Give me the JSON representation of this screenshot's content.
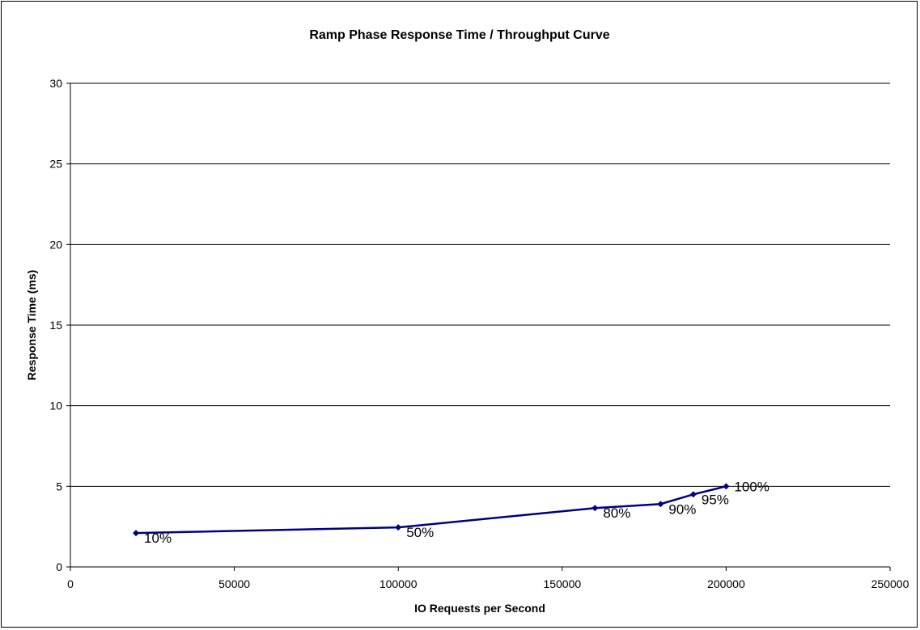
{
  "chart_data": {
    "type": "scatter",
    "title": "Ramp Phase Response Time / Throughput Curve",
    "xlabel": "IO Requests per Second",
    "ylabel": "Response Time (ms)",
    "xlim": [
      0,
      250000
    ],
    "ylim": [
      0,
      30
    ],
    "x_ticks": [
      "0",
      "50000",
      "100000",
      "150000",
      "200000",
      "250000"
    ],
    "y_ticks": [
      "0",
      "5",
      "10",
      "15",
      "20",
      "25",
      "30"
    ],
    "grid": "horizontal",
    "legend": "none",
    "line_color": "#000080",
    "series": [
      {
        "x": [
          20000,
          100000,
          160000,
          180000,
          190000,
          200000
        ],
        "y": [
          2.1,
          2.45,
          3.65,
          3.9,
          4.5,
          5.0
        ],
        "labels": [
          "10%",
          "50%",
          "80%",
          "90%",
          "95%",
          "100%"
        ]
      }
    ]
  }
}
